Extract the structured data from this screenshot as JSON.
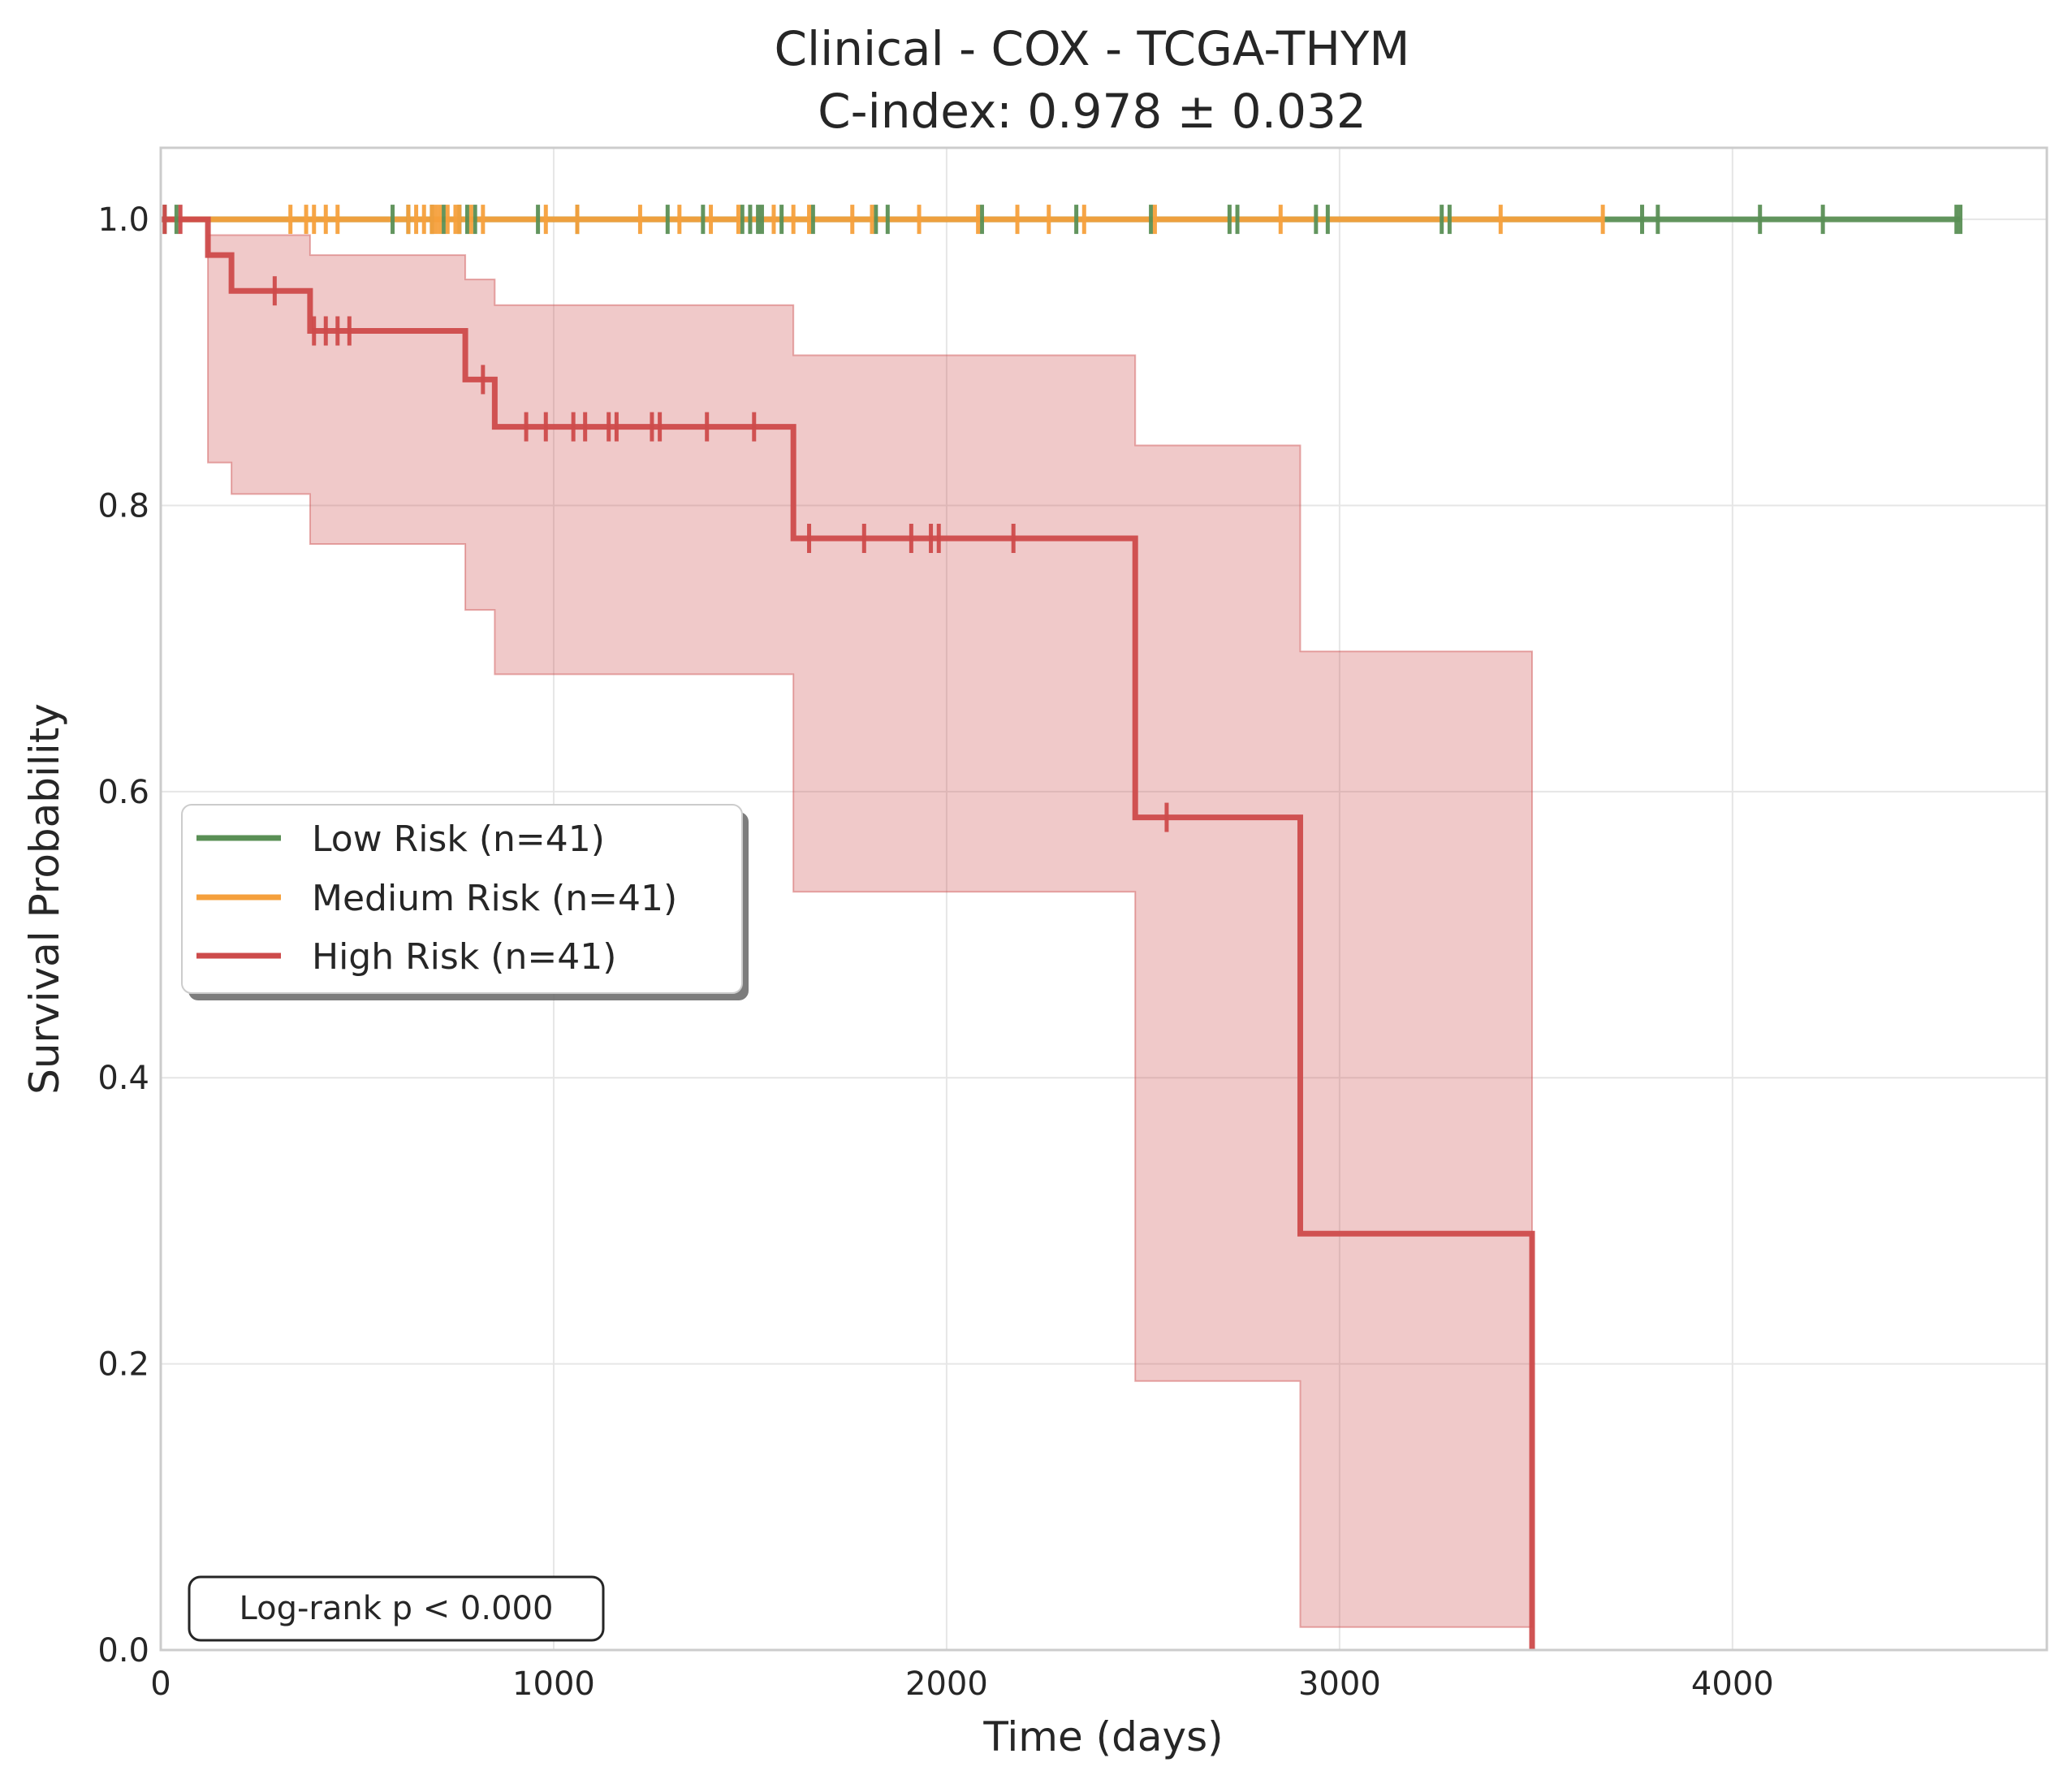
{
  "chart_data": {
    "type": "line",
    "title": "Clinical - COX - TCGA-THYM",
    "subtitle": "C-index: 0.978 ± 0.032",
    "xlabel": "Time (days)",
    "ylabel": "Survival Probability",
    "xlim": [
      0,
      4800
    ],
    "ylim": [
      0,
      1.05
    ],
    "x_ticks": [
      0,
      1000,
      2000,
      3000,
      4000
    ],
    "x_tick_labels": [
      "0",
      "1000",
      "2000",
      "3000",
      "4000"
    ],
    "y_ticks": [
      0.0,
      0.2,
      0.4,
      0.6,
      0.8,
      1.0
    ],
    "y_tick_labels": [
      "0.0",
      "0.2",
      "0.4",
      "0.6",
      "0.8",
      "1.0"
    ],
    "grid": true,
    "legend_placement": "center-left",
    "annotation": "Log-rank p < 0.000",
    "series": [
      {
        "name": "Low Risk (n=41)",
        "color": "#5a8f55",
        "steps": [
          [
            0,
            1.0
          ],
          [
            4580,
            1.0
          ]
        ],
        "censor_times": [
          10,
          40,
          590,
          630,
          690,
          720,
          760,
          780,
          800,
          960,
          1060,
          1290,
          1380,
          1480,
          1500,
          1520,
          1530,
          1580,
          1660,
          1820,
          1850,
          2090,
          2330,
          2520,
          2720,
          2740,
          2940,
          2970,
          3260,
          3280,
          3770,
          3810,
          4070,
          4230,
          4570,
          4580
        ]
      },
      {
        "name": "Medium Risk (n=41)",
        "color": "#f5a03c",
        "steps": [
          [
            0,
            1.0
          ],
          [
            3670,
            1.0
          ]
        ],
        "censor_times": [
          330,
          370,
          390,
          420,
          450,
          630,
          650,
          670,
          690,
          700,
          710,
          730,
          750,
          760,
          790,
          820,
          980,
          1060,
          1220,
          1320,
          1400,
          1470,
          1560,
          1610,
          1650,
          1760,
          1810,
          1930,
          2080,
          2180,
          2260,
          2350,
          2530,
          2850,
          3410,
          3670
        ]
      },
      {
        "name": "High Risk (n=41)",
        "color": "#cd4b4b",
        "steps": [
          [
            0,
            1.0
          ],
          [
            120,
            1.0
          ],
          [
            120,
            0.975
          ],
          [
            180,
            0.975
          ],
          [
            180,
            0.95
          ],
          [
            380,
            0.95
          ],
          [
            380,
            0.922
          ],
          [
            775,
            0.922
          ],
          [
            775,
            0.888
          ],
          [
            850,
            0.888
          ],
          [
            850,
            0.855
          ],
          [
            1610,
            0.855
          ],
          [
            1610,
            0.777
          ],
          [
            2480,
            0.777
          ],
          [
            2480,
            0.582
          ],
          [
            2900,
            0.582
          ],
          [
            2900,
            0.291
          ],
          [
            3490,
            0.291
          ],
          [
            3490,
            0.0
          ]
        ],
        "ci_upper": [
          [
            0,
            1.0
          ],
          [
            120,
            1.0
          ],
          [
            120,
            0.989
          ],
          [
            380,
            0.989
          ],
          [
            380,
            0.975
          ],
          [
            775,
            0.975
          ],
          [
            775,
            0.958
          ],
          [
            850,
            0.958
          ],
          [
            850,
            0.94
          ],
          [
            1610,
            0.94
          ],
          [
            1610,
            0.905
          ],
          [
            2480,
            0.905
          ],
          [
            2480,
            0.842
          ],
          [
            2900,
            0.842
          ],
          [
            2900,
            0.698
          ],
          [
            3490,
            0.698
          ]
        ],
        "ci_lower": [
          [
            0,
            1.0
          ],
          [
            120,
            1.0
          ],
          [
            120,
            0.83
          ],
          [
            180,
            0.83
          ],
          [
            180,
            0.808
          ],
          [
            380,
            0.808
          ],
          [
            380,
            0.773
          ],
          [
            775,
            0.773
          ],
          [
            775,
            0.727
          ],
          [
            850,
            0.727
          ],
          [
            850,
            0.682
          ],
          [
            1610,
            0.682
          ],
          [
            1610,
            0.53
          ],
          [
            2480,
            0.53
          ],
          [
            2480,
            0.188
          ],
          [
            2900,
            0.188
          ],
          [
            2900,
            0.016
          ],
          [
            3490,
            0.016
          ]
        ],
        "censor_times": [
          10,
          50,
          290,
          390,
          420,
          450,
          480,
          820,
          930,
          980,
          1050,
          1080,
          1140,
          1160,
          1250,
          1270,
          1390,
          1510,
          1650,
          1790,
          1910,
          1960,
          1980,
          2170,
          2560
        ]
      }
    ]
  }
}
